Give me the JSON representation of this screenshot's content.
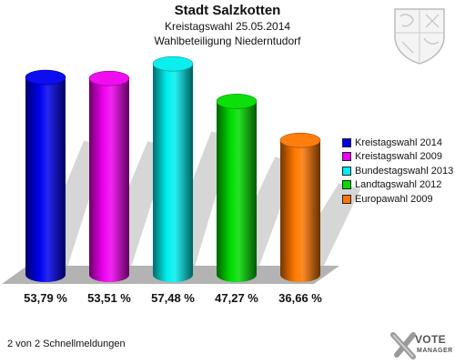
{
  "header": {
    "title": "Stadt Salzkotten",
    "subtitle": "Kreistagswahl 25.05.2014",
    "subtitle2": "Wahlbeteiligung Niederntudorf"
  },
  "footer": {
    "text": "2 von 2 Schnellmeldungen"
  },
  "logo": {
    "top": "VOTE",
    "bottom": "MANAGER",
    "icon": "vote-manager-x-icon"
  },
  "crest": {
    "icon": "coat-of-arms-icon"
  },
  "chart_data": {
    "type": "bar",
    "ylim": [
      0,
      60
    ],
    "categories": [
      "Kreistagswahl 2014",
      "Kreistagswahl 2009",
      "Bundestagswahl 2013",
      "Landtagswahl 2012",
      "Europawahl 2009"
    ],
    "values": [
      53.79,
      53.51,
      57.48,
      47.27,
      36.66
    ],
    "value_labels": [
      "53,79 %",
      "53,51 %",
      "57,48 %",
      "47,27 %",
      "36,66 %"
    ],
    "colors": [
      "#0000ee",
      "#ee00ee",
      "#00eeee",
      "#00dd00",
      "#ff7700"
    ],
    "legend_position": "right",
    "grid": false
  }
}
